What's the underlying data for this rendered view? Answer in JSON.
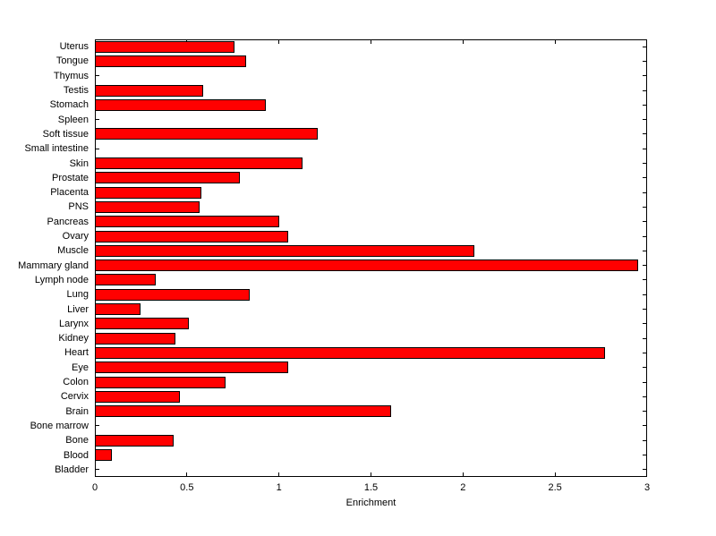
{
  "chart_data": {
    "type": "bar",
    "orientation": "horizontal",
    "title": "",
    "xlabel": "Enrichment",
    "ylabel": "",
    "xlim": [
      0,
      3
    ],
    "xticks": [
      0,
      0.5,
      1,
      1.5,
      2,
      2.5,
      3
    ],
    "xtick_labels": [
      "0",
      "0.5",
      "1",
      "1.5",
      "2",
      "2.5",
      "3"
    ],
    "grid": false,
    "legend": false,
    "bar_color": "#FF0000",
    "bar_edge_color": "#000000",
    "background_color": "#FFFFFF",
    "categories_top_to_bottom": [
      "Uterus",
      "Tongue",
      "Thymus",
      "Testis",
      "Stomach",
      "Spleen",
      "Soft tissue",
      "Small intestine",
      "Skin",
      "Prostate",
      "Placenta",
      "PNS",
      "Pancreas",
      "Ovary",
      "Muscle",
      "Mammary gland",
      "Lymph node",
      "Lung",
      "Liver",
      "Larynx",
      "Kidney",
      "Heart",
      "Eye",
      "Colon",
      "Cervix",
      "Brain",
      "Bone marrow",
      "Bone",
      "Blood",
      "Bladder"
    ],
    "values": [
      0.76,
      0.82,
      0,
      0.59,
      0.93,
      0,
      1.21,
      0,
      1.13,
      0.79,
      0.58,
      0.57,
      1.0,
      1.05,
      2.06,
      2.95,
      0.33,
      0.84,
      0.25,
      0.51,
      0.44,
      2.77,
      1.05,
      0.71,
      0.46,
      1.61,
      0,
      0.43,
      0.09,
      0
    ]
  }
}
